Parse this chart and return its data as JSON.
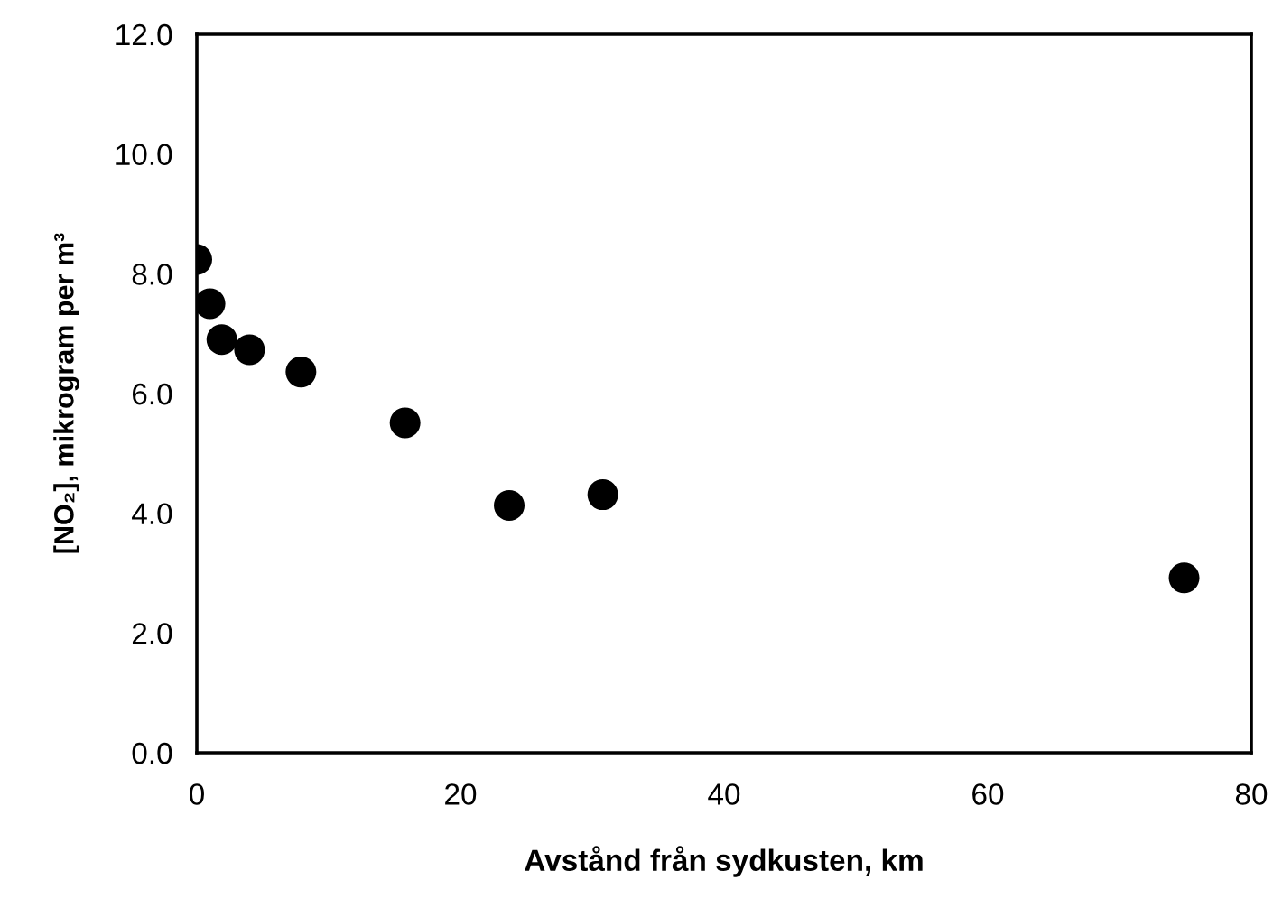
{
  "chart_data": {
    "type": "scatter",
    "xlabel": "Avstånd från sydkusten, km",
    "ylabel": "[NO₂], mikrogram per m³",
    "x": [
      0,
      1.0,
      1.9,
      4.0,
      7.9,
      15.8,
      23.7,
      30.8,
      74.9
    ],
    "series": [
      {
        "color": "#000000",
        "values": [
          8.24,
          7.5,
          6.9,
          6.73,
          6.36,
          5.51,
          4.13,
          4.31,
          2.92
        ]
      }
    ],
    "xlim": [
      0,
      80
    ],
    "xticks": [
      0,
      20,
      40,
      60,
      80
    ],
    "ylim": [
      0,
      12
    ],
    "yticks": [
      {
        "value": 0,
        "label": "0.0"
      },
      {
        "value": 2,
        "label": "2.0"
      },
      {
        "value": 4,
        "label": "4.0"
      },
      {
        "value": 6,
        "label": "6.0"
      },
      {
        "value": 8,
        "label": "8.0"
      },
      {
        "value": 10,
        "label": "10.0"
      },
      {
        "value": 12,
        "label": "12.0"
      }
    ],
    "marker": "circle",
    "grid": false
  }
}
